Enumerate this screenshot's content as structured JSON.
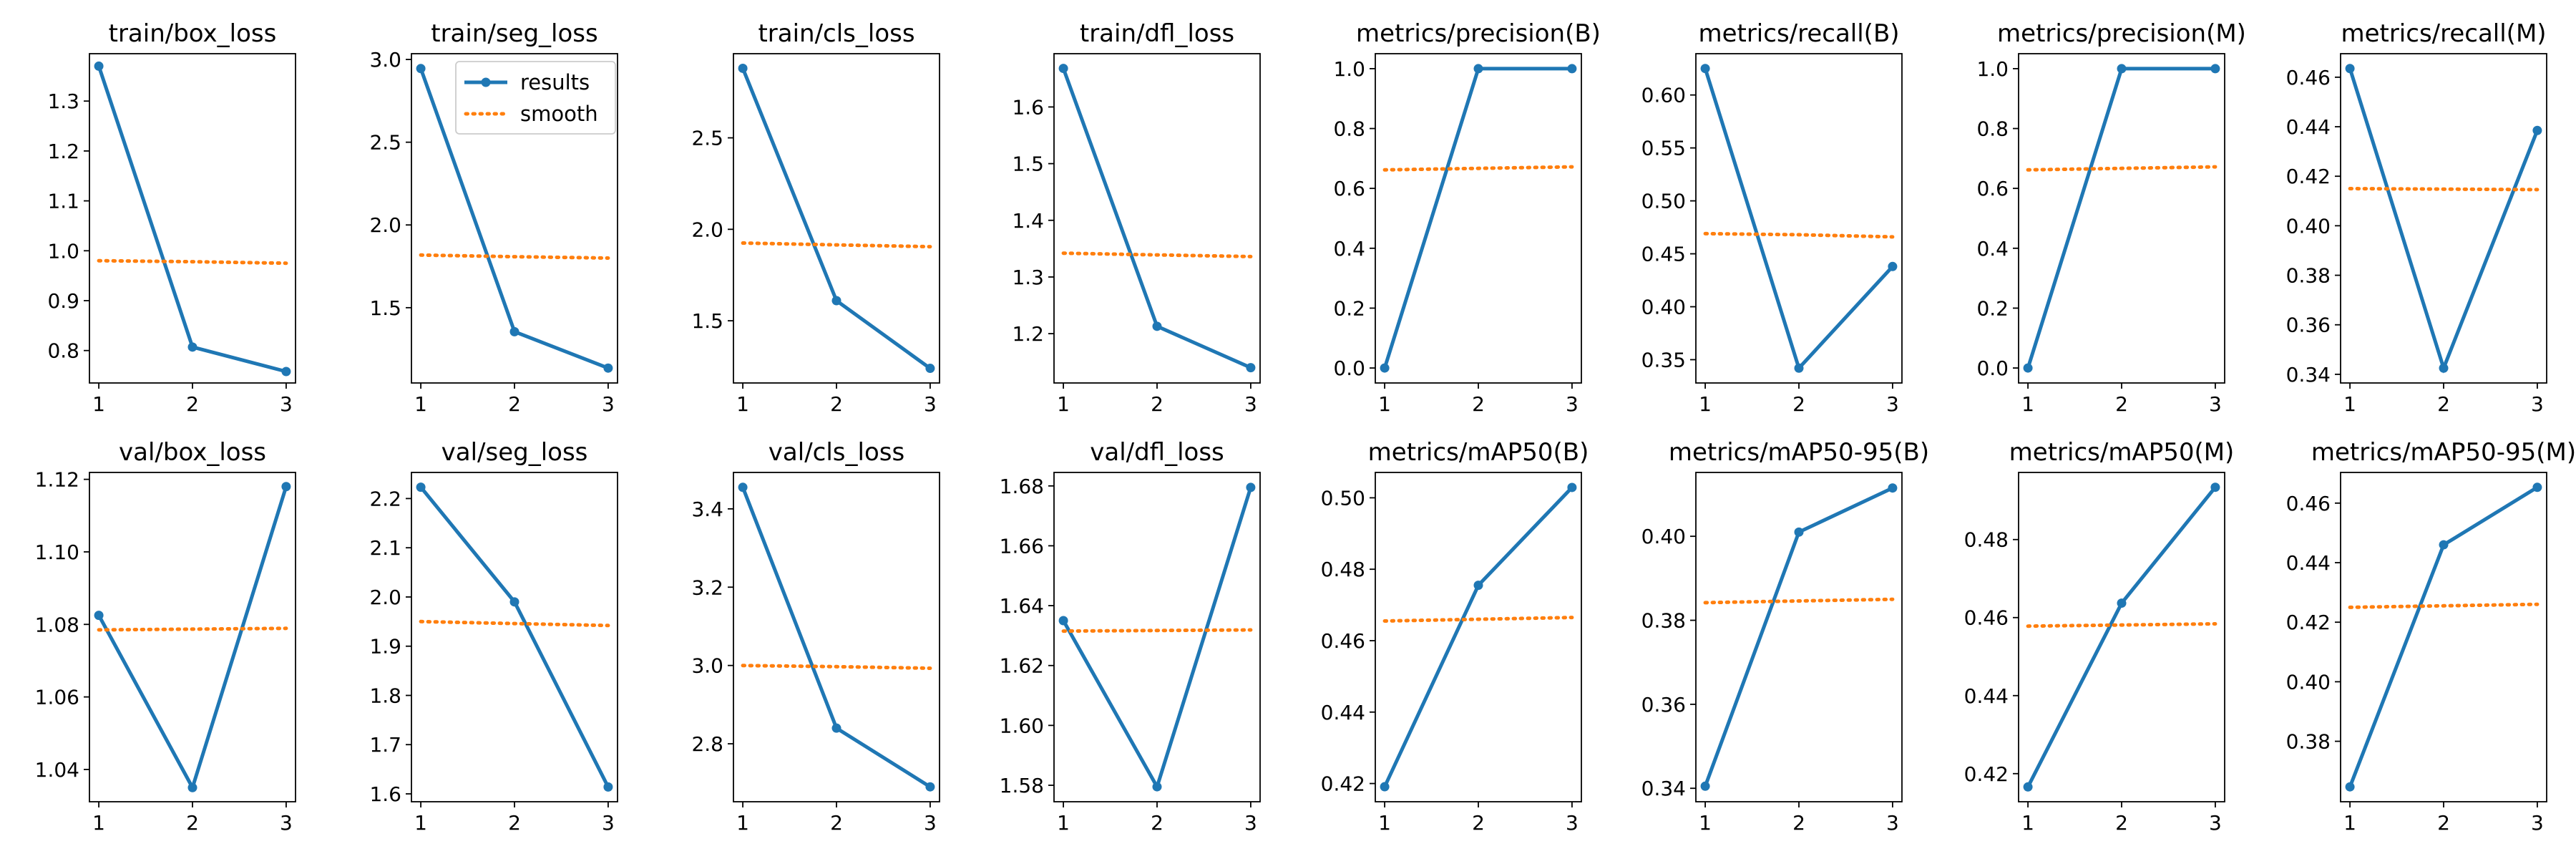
{
  "chart_data": [
    {
      "type": "line",
      "title": "train/box_loss",
      "x": [
        1,
        2,
        3
      ],
      "ylim": [
        0.735,
        1.395
      ],
      "yticks": [
        "0.8",
        "0.9",
        "1.0",
        "1.1",
        "1.2",
        "1.3"
      ],
      "series": [
        {
          "name": "results",
          "values": [
            1.37,
            0.807,
            0.758
          ],
          "color": "#1f77b4"
        },
        {
          "name": "smooth",
          "values": [
            0.98,
            0.978,
            0.975
          ],
          "color": "#ff7f0e"
        }
      ]
    },
    {
      "type": "line",
      "title": "train/seg_loss",
      "x": [
        1,
        2,
        3
      ],
      "ylim": [
        1.045,
        3.035
      ],
      "yticks": [
        "1.5",
        "2.0",
        "2.5",
        "3.0"
      ],
      "series": [
        {
          "name": "results",
          "values": [
            2.945,
            1.355,
            1.135
          ],
          "color": "#1f77b4"
        },
        {
          "name": "smooth",
          "values": [
            1.818,
            1.808,
            1.8
          ],
          "color": "#ff7f0e"
        }
      ]
    },
    {
      "type": "line",
      "title": "train/cls_loss",
      "x": [
        1,
        2,
        3
      ],
      "ylim": [
        1.16,
        2.96
      ],
      "yticks": [
        "1.5",
        "2.0",
        "2.5"
      ],
      "series": [
        {
          "name": "results",
          "values": [
            2.88,
            1.61,
            1.24
          ],
          "color": "#1f77b4"
        },
        {
          "name": "smooth",
          "values": [
            1.925,
            1.915,
            1.905
          ],
          "color": "#ff7f0e"
        }
      ]
    },
    {
      "type": "line",
      "title": "train/dfl_loss",
      "x": [
        1,
        2,
        3
      ],
      "ylim": [
        1.113,
        1.694
      ],
      "yticks": [
        "1.2",
        "1.3",
        "1.4",
        "1.5",
        "1.6"
      ],
      "series": [
        {
          "name": "results",
          "values": [
            1.668,
            1.213,
            1.14
          ],
          "color": "#1f77b4"
        },
        {
          "name": "smooth",
          "values": [
            1.342,
            1.339,
            1.336
          ],
          "color": "#ff7f0e"
        }
      ]
    },
    {
      "type": "line",
      "title": "metrics/precision(B)",
      "x": [
        1,
        2,
        3
      ],
      "ylim": [
        -0.05,
        1.05
      ],
      "yticks": [
        "0.0",
        "0.2",
        "0.4",
        "0.6",
        "0.8",
        "1.0"
      ],
      "series": [
        {
          "name": "results",
          "values": [
            0.0,
            1.0,
            1.0
          ],
          "color": "#1f77b4"
        },
        {
          "name": "smooth",
          "values": [
            0.662,
            0.667,
            0.672
          ],
          "color": "#ff7f0e"
        }
      ]
    },
    {
      "type": "line",
      "title": "metrics/recall(B)",
      "x": [
        1,
        2,
        3
      ],
      "ylim": [
        0.328,
        0.639
      ],
      "yticks": [
        "0.35",
        "0.40",
        "0.45",
        "0.50",
        "0.55",
        "0.60"
      ],
      "series": [
        {
          "name": "results",
          "values": [
            0.625,
            0.342,
            0.438
          ],
          "color": "#1f77b4"
        },
        {
          "name": "smooth",
          "values": [
            0.469,
            0.468,
            0.466
          ],
          "color": "#ff7f0e"
        }
      ]
    },
    {
      "type": "line",
      "title": "metrics/precision(M)",
      "x": [
        1,
        2,
        3
      ],
      "ylim": [
        -0.05,
        1.05
      ],
      "yticks": [
        "0.0",
        "0.2",
        "0.4",
        "0.6",
        "0.8",
        "1.0"
      ],
      "series": [
        {
          "name": "results",
          "values": [
            0.0,
            1.0,
            1.0
          ],
          "color": "#1f77b4"
        },
        {
          "name": "smooth",
          "values": [
            0.662,
            0.667,
            0.672
          ],
          "color": "#ff7f0e"
        }
      ]
    },
    {
      "type": "line",
      "title": "metrics/recall(M)",
      "x": [
        1,
        2,
        3
      ],
      "ylim": [
        0.3365,
        0.4695
      ],
      "yticks": [
        "0.34",
        "0.36",
        "0.38",
        "0.40",
        "0.42",
        "0.44",
        "0.46"
      ],
      "series": [
        {
          "name": "results",
          "values": [
            0.4635,
            0.3425,
            0.4385
          ],
          "color": "#1f77b4"
        },
        {
          "name": "smooth",
          "values": [
            0.415,
            0.4148,
            0.4146
          ],
          "color": "#ff7f0e"
        }
      ]
    },
    {
      "type": "line",
      "title": "val/box_loss",
      "x": [
        1,
        2,
        3
      ],
      "ylim": [
        1.0311,
        1.1219
      ],
      "yticks": [
        "1.04",
        "1.06",
        "1.08",
        "1.10",
        "1.12"
      ],
      "series": [
        {
          "name": "results",
          "values": [
            1.0825,
            1.035,
            1.118
          ],
          "color": "#1f77b4"
        },
        {
          "name": "smooth",
          "values": [
            1.0785,
            1.0787,
            1.0789
          ],
          "color": "#ff7f0e"
        }
      ]
    },
    {
      "type": "line",
      "title": "val/seg_loss",
      "x": [
        1,
        2,
        3
      ],
      "ylim": [
        1.584,
        2.253
      ],
      "yticks": [
        "1.6",
        "1.7",
        "1.8",
        "1.9",
        "2.0",
        "2.1",
        "2.2"
      ],
      "series": [
        {
          "name": "results",
          "values": [
            2.223,
            1.99,
            1.614
          ],
          "color": "#1f77b4"
        },
        {
          "name": "smooth",
          "values": [
            1.95,
            1.946,
            1.942
          ],
          "color": "#ff7f0e"
        }
      ]
    },
    {
      "type": "line",
      "title": "val/cls_loss",
      "x": [
        1,
        2,
        3
      ],
      "ylim": [
        2.652,
        3.493
      ],
      "yticks": [
        "2.8",
        "3.0",
        "3.2",
        "3.4"
      ],
      "series": [
        {
          "name": "results",
          "values": [
            3.455,
            2.84,
            2.69
          ],
          "color": "#1f77b4"
        },
        {
          "name": "smooth",
          "values": [
            3.0,
            2.997,
            2.993
          ],
          "color": "#ff7f0e"
        }
      ]
    },
    {
      "type": "line",
      "title": "val/dfl_loss",
      "x": [
        1,
        2,
        3
      ],
      "ylim": [
        1.5745,
        1.6845
      ],
      "yticks": [
        "1.58",
        "1.60",
        "1.62",
        "1.64",
        "1.66",
        "1.68"
      ],
      "series": [
        {
          "name": "results",
          "values": [
            1.635,
            1.5795,
            1.6795
          ],
          "color": "#1f77b4"
        },
        {
          "name": "smooth",
          "values": [
            1.6315,
            1.6317,
            1.6319
          ],
          "color": "#ff7f0e"
        }
      ]
    },
    {
      "type": "line",
      "title": "metrics/mAP50(B)",
      "x": [
        1,
        2,
        3
      ],
      "ylim": [
        0.4149,
        0.5071
      ],
      "yticks": [
        "0.42",
        "0.44",
        "0.46",
        "0.48",
        "0.50"
      ],
      "series": [
        {
          "name": "results",
          "values": [
            0.4191,
            0.4755,
            0.5029
          ],
          "color": "#1f77b4"
        },
        {
          "name": "smooth",
          "values": [
            0.4655,
            0.466,
            0.4665
          ],
          "color": "#ff7f0e"
        }
      ]
    },
    {
      "type": "line",
      "title": "metrics/mAP50-95(B)",
      "x": [
        1,
        2,
        3
      ],
      "ylim": [
        0.3368,
        0.4152
      ],
      "yticks": [
        "0.34",
        "0.36",
        "0.38",
        "0.40"
      ],
      "series": [
        {
          "name": "results",
          "values": [
            0.3405,
            0.401,
            0.4115
          ],
          "color": "#1f77b4"
        },
        {
          "name": "smooth",
          "values": [
            0.3842,
            0.3846,
            0.385
          ],
          "color": "#ff7f0e"
        }
      ]
    },
    {
      "type": "line",
      "title": "metrics/mAP50(M)",
      "x": [
        1,
        2,
        3
      ],
      "ylim": [
        0.4128,
        0.4972
      ],
      "yticks": [
        "0.42",
        "0.44",
        "0.46",
        "0.48"
      ],
      "series": [
        {
          "name": "results",
          "values": [
            0.4166,
            0.4637,
            0.4934
          ],
          "color": "#1f77b4"
        },
        {
          "name": "smooth",
          "values": [
            0.4578,
            0.4581,
            0.4584
          ],
          "color": "#ff7f0e"
        }
      ]
    },
    {
      "type": "line",
      "title": "metrics/mAP50-95(M)",
      "x": [
        1,
        2,
        3
      ],
      "ylim": [
        0.3597,
        0.4703
      ],
      "yticks": [
        "0.38",
        "0.40",
        "0.42",
        "0.44",
        "0.46"
      ],
      "series": [
        {
          "name": "results",
          "values": [
            0.3647,
            0.446,
            0.4653
          ],
          "color": "#1f77b4"
        },
        {
          "name": "smooth",
          "values": [
            0.425,
            0.4255,
            0.426
          ],
          "color": "#ff7f0e"
        }
      ]
    }
  ],
  "legend": {
    "results": "results",
    "smooth": "smooth",
    "placement": "top-right"
  }
}
